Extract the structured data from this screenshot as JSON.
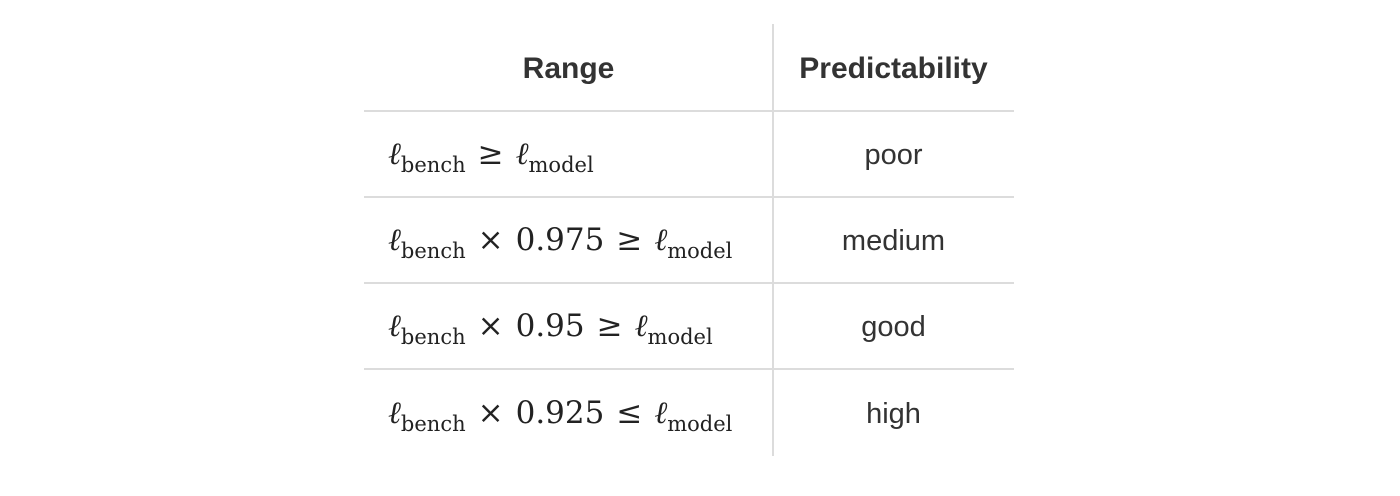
{
  "table": {
    "headers": [
      "Range",
      "Predictability"
    ],
    "rows": [
      {
        "ell": "ℓ",
        "sub_left": "bench",
        "multiplier_op": "",
        "factor": "",
        "relation": "≥",
        "sub_right": "model",
        "predictability": "poor"
      },
      {
        "ell": "ℓ",
        "sub_left": "bench",
        "multiplier_op": "×",
        "factor": "0.975",
        "relation": "≥",
        "sub_right": "model",
        "predictability": "medium"
      },
      {
        "ell": "ℓ",
        "sub_left": "bench",
        "multiplier_op": "×",
        "factor": "0.95",
        "relation": "≥",
        "sub_right": "model",
        "predictability": "good"
      },
      {
        "ell": "ℓ",
        "sub_left": "bench",
        "multiplier_op": "×",
        "factor": "0.925",
        "relation": "≤",
        "sub_right": "model",
        "predictability": "high"
      }
    ]
  }
}
